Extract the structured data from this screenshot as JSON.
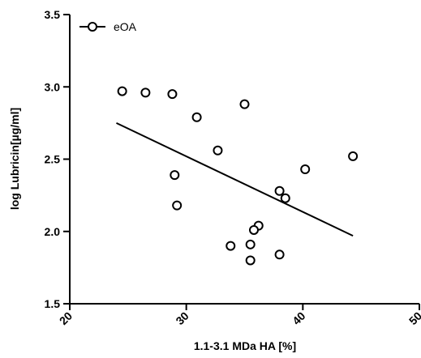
{
  "chart_data": {
    "type": "scatter",
    "xlabel": "1.1-3.1 MDa HA [%]",
    "ylabel": "log Lubricin[µg/ml]",
    "xlim": [
      20,
      50
    ],
    "ylim": [
      1.5,
      3.5
    ],
    "x_ticks": [
      20,
      30,
      40,
      50
    ],
    "y_ticks": [
      1.5,
      2.0,
      2.5,
      3.0,
      3.5
    ],
    "x_tick_labels": [
      "20",
      "30",
      "40",
      "50"
    ],
    "y_tick_labels": [
      "1.5",
      "2.0",
      "2.5",
      "3.0",
      "3.5"
    ],
    "legend": {
      "position": "top-left"
    },
    "grid": false,
    "series": [
      {
        "name": "eOA",
        "marker": "open-circle",
        "color": "#000000",
        "points": [
          {
            "x": 24.5,
            "y": 2.97
          },
          {
            "x": 26.5,
            "y": 2.96
          },
          {
            "x": 28.8,
            "y": 2.95
          },
          {
            "x": 30.9,
            "y": 2.79
          },
          {
            "x": 35.0,
            "y": 2.88
          },
          {
            "x": 32.7,
            "y": 2.56
          },
          {
            "x": 29.0,
            "y": 2.39
          },
          {
            "x": 29.2,
            "y": 2.18
          },
          {
            "x": 44.3,
            "y": 2.52
          },
          {
            "x": 40.2,
            "y": 2.43
          },
          {
            "x": 38.0,
            "y": 2.28
          },
          {
            "x": 38.5,
            "y": 2.23
          },
          {
            "x": 36.2,
            "y": 2.04
          },
          {
            "x": 35.8,
            "y": 2.01
          },
          {
            "x": 35.5,
            "y": 1.91
          },
          {
            "x": 33.8,
            "y": 1.9
          },
          {
            "x": 38.0,
            "y": 1.84
          },
          {
            "x": 35.5,
            "y": 1.8
          }
        ]
      }
    ],
    "regression_line": {
      "x": [
        24.0,
        44.3
      ],
      "y": [
        2.75,
        1.97
      ]
    }
  }
}
